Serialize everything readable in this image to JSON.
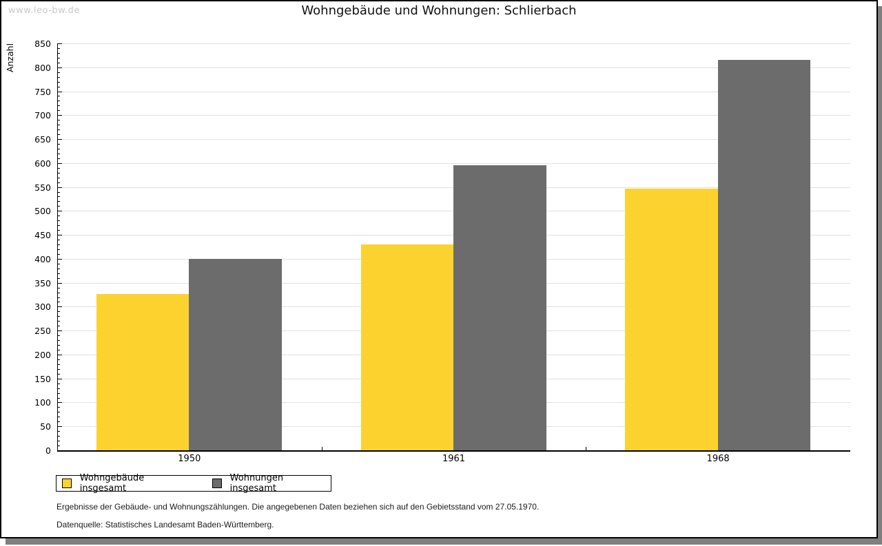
{
  "watermark": "www.leo-bw.de",
  "chart_data": {
    "type": "bar",
    "title": "Wohngebäude und Wohnungen: Schlierbach",
    "categories": [
      "1950",
      "1961",
      "1968"
    ],
    "series": [
      {
        "name": "Wohngebäude insgesamt",
        "color": "#fcd32e",
        "values": [
          326,
          430,
          547
        ]
      },
      {
        "name": "Wohnungen insgesamt",
        "color": "#6c6c6c",
        "values": [
          400,
          595,
          816
        ]
      }
    ],
    "xlabel": "",
    "ylabel": "Anzahl",
    "ylim": [
      0,
      850
    ],
    "ytick_step": 50,
    "yminor_step": 10,
    "grid": true,
    "legend_position": "bottom-left"
  },
  "footer": {
    "line1": "Ergebnisse der Gebäude- und Wohnungszählungen. Die angegebenen Daten beziehen sich auf den Gebietsstand vom 27.05.1970.",
    "line2": "Datenquelle: Statistisches Landesamt Baden-Württemberg."
  },
  "colors": {
    "bar_yellow": "#fcd32e",
    "bar_gray": "#6c6c6c",
    "gridline": "#e0e0e0",
    "shadow": "#7f7f7f",
    "watermark_text": "#c9c9c9"
  }
}
